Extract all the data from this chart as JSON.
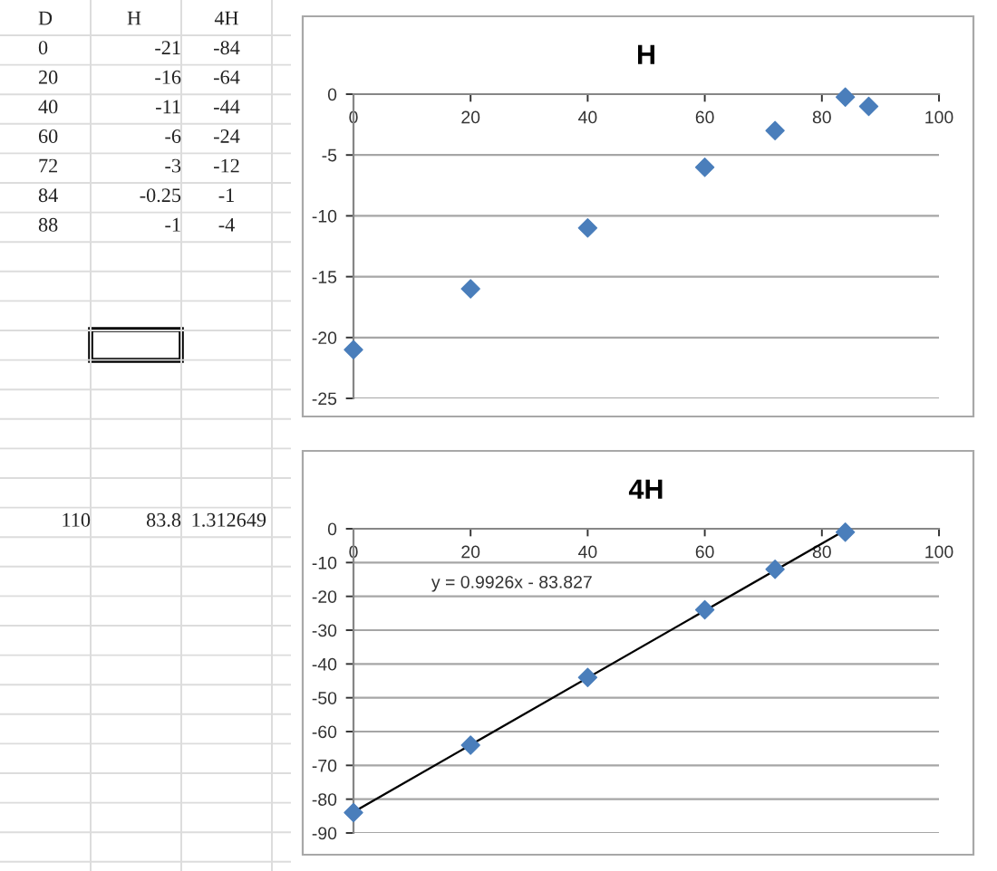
{
  "chart_data": [
    {
      "type": "other",
      "annotations": [
        "D",
        "H",
        "4H",
        "0",
        "-21",
        "-84",
        "20",
        "-16",
        "-64",
        "40",
        "-11",
        "-44",
        "60",
        "-6",
        "-24",
        "72",
        "-3",
        "-12",
        "84",
        "-0.25",
        "-1",
        "88",
        "-1",
        "-4",
        "110",
        "83.8",
        "1.312649"
      ]
    },
    {
      "type": "scatter",
      "title": "H",
      "marker": "diamond",
      "grid": "y",
      "xlim": [
        0,
        100
      ],
      "xticks": [
        0,
        20,
        40,
        60,
        80,
        100
      ],
      "ylim": [
        -25,
        0
      ],
      "yticks": [
        -25,
        -20,
        -15,
        -10,
        -5,
        0
      ],
      "series": [
        {
          "type": "scatter",
          "color": "#4a7ebb",
          "x": [
            0,
            20,
            40,
            60,
            72,
            84,
            88
          ],
          "values": [
            -21,
            -16,
            -11,
            -6,
            -3,
            -0.25,
            -1
          ]
        }
      ]
    },
    {
      "type": "scatter",
      "title": "4H",
      "marker": "diamond",
      "grid": "y",
      "xlim": [
        0,
        100
      ],
      "xticks": [
        0,
        20,
        40,
        60,
        80,
        100
      ],
      "ylim": [
        -90,
        0
      ],
      "yticks": [
        -90,
        -80,
        -70,
        -60,
        -50,
        -40,
        -30,
        -20,
        -10,
        0
      ],
      "annotations": [
        "y = 0.9926x - 83.827"
      ],
      "series": [
        {
          "type": "scatter",
          "color": "#4a7ebb",
          "x": [
            0,
            20,
            40,
            60,
            72,
            84
          ],
          "values": [
            -84,
            -64,
            -44,
            -24,
            -12,
            -1
          ]
        },
        {
          "type": "line",
          "color": "#000000",
          "marker": "none",
          "line_style": "solid",
          "x": [
            0,
            84
          ],
          "values": [
            -83.8,
            -0.4
          ]
        }
      ]
    }
  ]
}
